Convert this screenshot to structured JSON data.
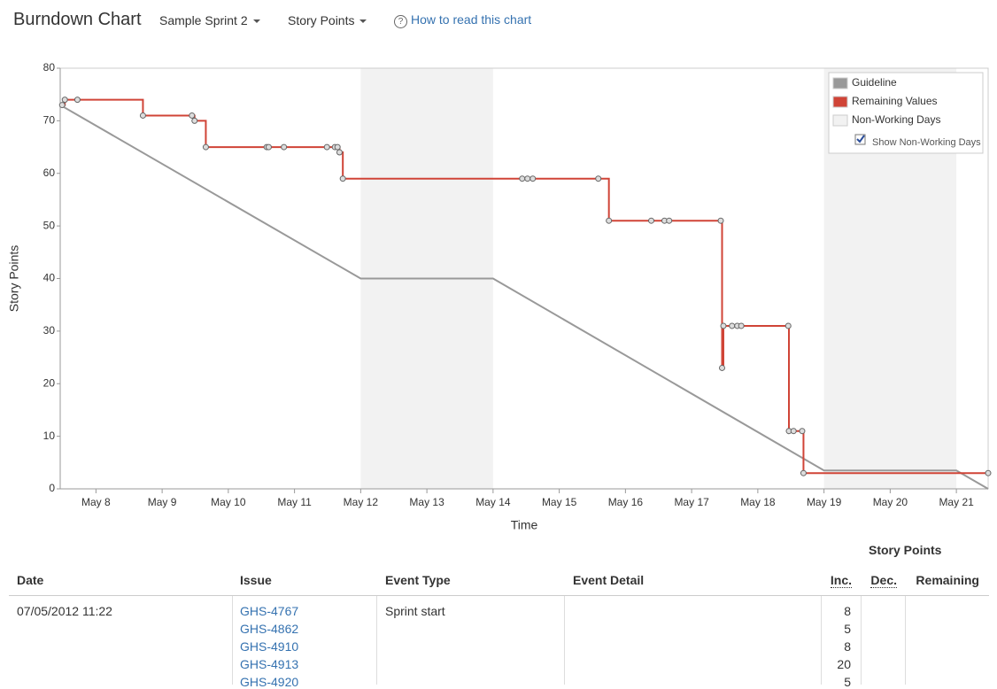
{
  "header": {
    "title": "Burndown Chart",
    "sprint": "Sample Sprint 2",
    "statistic": "Story Points",
    "help": "How to read this chart"
  },
  "chart_data": {
    "type": "line",
    "x_label": "Time",
    "y_label": "Story Points",
    "xlim": [
      7.46,
      21.48
    ],
    "ylim": [
      0,
      80
    ],
    "yticks": [
      0,
      10,
      20,
      30,
      40,
      50,
      60,
      70,
      80
    ],
    "xticks": [
      {
        "value": 8,
        "label": "May 8"
      },
      {
        "value": 9,
        "label": "May 9"
      },
      {
        "value": 10,
        "label": "May 10"
      },
      {
        "value": 11,
        "label": "May 11"
      },
      {
        "value": 12,
        "label": "May 12"
      },
      {
        "value": 13,
        "label": "May 13"
      },
      {
        "value": 14,
        "label": "May 14"
      },
      {
        "value": 15,
        "label": "May 15"
      },
      {
        "value": 16,
        "label": "May 16"
      },
      {
        "value": 17,
        "label": "May 17"
      },
      {
        "value": 18,
        "label": "May 18"
      },
      {
        "value": 19,
        "label": "May 19"
      },
      {
        "value": 20,
        "label": "May 20"
      },
      {
        "value": 21,
        "label": "May 21"
      }
    ],
    "legend": "upper right",
    "non_working": {
      "name": "Non-Working Days",
      "color": "#f2f2f2",
      "ranges": [
        [
          12,
          14
        ],
        [
          19,
          21
        ]
      ],
      "show": true,
      "toggle_label": "Show Non-Working Days"
    },
    "series": [
      {
        "name": "Guideline",
        "color": "#999999",
        "step": false,
        "markers": false,
        "x": [
          7.46,
          12,
          14,
          19,
          21,
          21.48
        ],
        "values": [
          73,
          40,
          40,
          3.5,
          3.5,
          0
        ]
      },
      {
        "name": "Remaining Values",
        "color": "#d04437",
        "step": true,
        "markers": true,
        "x": [
          7.49,
          7.53,
          7.72,
          8.71,
          9.45,
          9.49,
          9.66,
          10.58,
          10.61,
          10.84,
          11.49,
          11.61,
          11.65,
          11.68,
          11.73,
          14.44,
          14.52,
          14.6,
          15.59,
          15.75,
          16.39,
          16.59,
          16.66,
          17.44,
          17.46,
          17.48,
          17.61,
          17.69,
          17.75,
          18.46,
          18.47,
          18.54,
          18.67,
          18.69,
          21.48
        ],
        "values": [
          73,
          74,
          74,
          71,
          71,
          70,
          65,
          65,
          65,
          65,
          65,
          65,
          65,
          64,
          59,
          59,
          59,
          59,
          59,
          51,
          51,
          51,
          51,
          51,
          23,
          31,
          31,
          31,
          31,
          31,
          11,
          11,
          11,
          3,
          3
        ]
      }
    ]
  },
  "table": {
    "group_header": "Story Points",
    "columns": [
      "Date",
      "Issue",
      "Event Type",
      "Event Detail",
      "Inc.",
      "Dec.",
      "Remaining"
    ],
    "rows": [
      {
        "date": "07/05/2012 11:22",
        "event_type": "Sprint start",
        "issues": [
          {
            "key": "GHS-4767",
            "inc": 8
          },
          {
            "key": "GHS-4862",
            "inc": 5
          },
          {
            "key": "GHS-4910",
            "inc": 8
          },
          {
            "key": "GHS-4913",
            "inc": 20
          },
          {
            "key": "GHS-4920",
            "inc": 5
          }
        ]
      }
    ]
  }
}
